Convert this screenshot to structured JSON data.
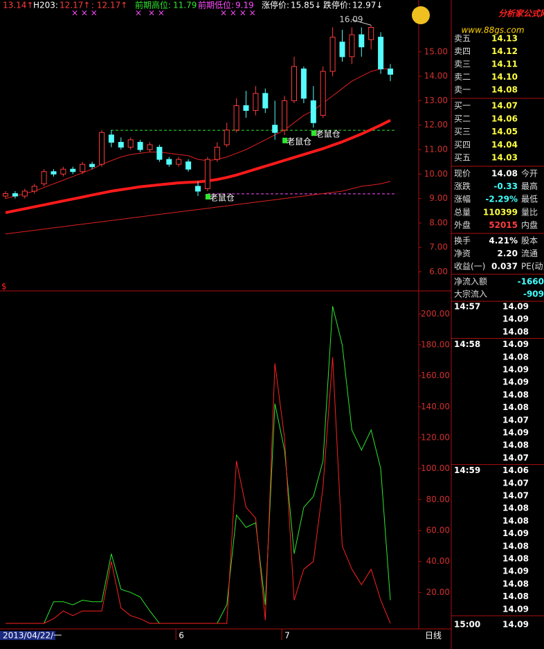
{
  "header": {
    "items": [
      {
        "text": "13.14↑"
      },
      {
        "label": "H203:",
        "text": "12.17↑"
      },
      {
        "text": ": 12.17↑"
      },
      {
        "label": "前期高位:",
        "value": 11.79
      },
      {
        "label": "前期低位:",
        "value": 9.19
      },
      {
        "label": "涨停价:",
        "text": "15.85↓"
      },
      {
        "label": "跌停价:",
        "text": "12.97↓"
      }
    ]
  },
  "chart_data": [
    {
      "type": "candlestick",
      "up_color": "#ff3c3c",
      "down_color": "#54fcfc",
      "open": [
        9.1,
        9.2,
        9.1,
        9.3,
        9.6,
        10.1,
        10.0,
        10.2,
        10.1,
        10.4,
        10.4,
        11.6,
        11.3,
        11.1,
        11.3,
        11.0,
        11.1,
        10.6,
        10.4,
        10.5,
        9.5,
        9.4,
        10.6,
        11.2,
        11.8,
        12.8,
        12.6,
        13.3,
        12.0,
        11.8,
        13.0,
        14.3,
        13.0,
        12.4,
        14.2,
        15.4,
        14.8,
        15.7,
        15.5,
        15.6,
        14.3
      ],
      "high": [
        9.3,
        9.3,
        9.4,
        9.6,
        10.2,
        10.2,
        10.3,
        10.3,
        10.5,
        10.5,
        11.8,
        11.8,
        11.5,
        11.5,
        11.4,
        11.3,
        11.2,
        10.7,
        10.7,
        10.6,
        9.7,
        10.7,
        11.3,
        12.1,
        13.1,
        13.4,
        13.6,
        13.5,
        13.0,
        13.2,
        14.8,
        14.4,
        13.6,
        14.4,
        16.0,
        15.9,
        16.0,
        16.0,
        16.09,
        15.8,
        14.5
      ],
      "low": [
        9.0,
        9.0,
        9.0,
        9.2,
        9.5,
        9.9,
        9.9,
        10.0,
        10.0,
        10.2,
        10.3,
        11.1,
        11.0,
        11.0,
        10.9,
        10.9,
        10.5,
        10.3,
        10.3,
        10.1,
        9.1,
        9.3,
        10.5,
        11.1,
        11.7,
        12.3,
        12.4,
        12.5,
        11.4,
        11.6,
        12.9,
        12.9,
        11.9,
        12.3,
        14.0,
        14.6,
        14.5,
        14.8,
        15.1,
        14.1,
        13.8
      ],
      "close": [
        9.2,
        9.1,
        9.3,
        9.5,
        10.1,
        10.0,
        10.2,
        10.1,
        10.4,
        10.3,
        11.7,
        11.3,
        11.1,
        11.4,
        11.0,
        11.2,
        10.6,
        10.4,
        10.6,
        10.2,
        9.3,
        10.6,
        11.1,
        11.8,
        12.8,
        12.6,
        13.3,
        12.7,
        11.7,
        13.0,
        14.4,
        13.1,
        12.1,
        14.2,
        15.6,
        14.8,
        15.7,
        15.2,
        16.0,
        14.3,
        14.08
      ],
      "series": [
        {
          "color": "#e02020",
          "width": 1,
          "values": [
            9.0,
            9.1,
            9.2,
            9.3,
            9.45,
            9.6,
            9.75,
            9.9,
            10.05,
            10.2,
            10.4,
            10.55,
            10.7,
            10.8,
            10.85,
            10.9,
            10.9,
            10.85,
            10.8,
            10.75,
            10.6,
            10.55,
            10.6,
            10.7,
            10.85,
            11.0,
            11.2,
            11.4,
            11.6,
            11.8,
            12.1,
            12.4,
            12.6,
            12.9,
            13.2,
            13.5,
            13.8,
            14.0,
            14.2,
            14.3,
            14.3
          ]
        },
        {
          "color": "#ff1a1a",
          "width": 4,
          "values": [
            8.42,
            8.5,
            8.58,
            8.66,
            8.74,
            8.82,
            8.9,
            8.98,
            9.06,
            9.14,
            9.22,
            9.3,
            9.36,
            9.42,
            9.48,
            9.52,
            9.56,
            9.6,
            9.64,
            9.66,
            9.68,
            9.72,
            9.78,
            9.86,
            9.96,
            10.08,
            10.2,
            10.32,
            10.44,
            10.56,
            10.68,
            10.8,
            10.92,
            11.04,
            11.18,
            11.32,
            11.48,
            11.64,
            11.82,
            12.0,
            12.2
          ]
        },
        {
          "color": "#e02020",
          "width": 1,
          "values": [
            7.55,
            7.6,
            7.65,
            7.7,
            7.75,
            7.8,
            7.85,
            7.9,
            7.95,
            8.0,
            8.05,
            8.1,
            8.15,
            8.2,
            8.25,
            8.3,
            8.35,
            8.4,
            8.45,
            8.5,
            8.55,
            8.6,
            8.65,
            8.7,
            8.75,
            8.8,
            8.85,
            8.9,
            8.95,
            9.0,
            9.05,
            9.1,
            9.15,
            9.2,
            9.25,
            9.3,
            9.4,
            9.5,
            9.55,
            9.6,
            9.7
          ]
        }
      ],
      "max_label": 16.09,
      "annotations": [
        "老鼠仓",
        "老鼠仓",
        "老鼠仓"
      ],
      "ylim": [
        5.22,
        17.12
      ],
      "yticks": [
        {
          "value": 6,
          "label": "6.00"
        },
        {
          "value": 7,
          "label": "7.00"
        },
        {
          "value": 8,
          "label": "8.00"
        },
        {
          "value": 9,
          "label": "9.00"
        },
        {
          "value": 10,
          "label": "10.00"
        },
        {
          "value": 11,
          "label": "11.00"
        },
        {
          "value": 12,
          "label": "12.00"
        },
        {
          "value": 13,
          "label": "13.00"
        },
        {
          "value": 14,
          "label": "14.00"
        },
        {
          "value": 15,
          "label": "15.00"
        }
      ]
    },
    {
      "type": "line",
      "indicator_label": "$",
      "categories": [
        "2013/04/22/一",
        null,
        null,
        null,
        null,
        null,
        null,
        null,
        null,
        null,
        null,
        null,
        null,
        null,
        null,
        null,
        null,
        null,
        "6",
        null,
        null,
        null,
        null,
        null,
        null,
        null,
        null,
        null,
        null,
        "7",
        null,
        null,
        null,
        null,
        null,
        null,
        null,
        null,
        null,
        null,
        null
      ],
      "series": [
        {
          "color": "#2ee82e",
          "values": [
            0,
            0,
            0,
            0,
            0,
            14,
            14,
            12,
            15,
            14,
            14,
            45,
            22,
            20,
            17,
            8,
            0,
            0,
            0,
            0,
            0,
            0,
            0,
            12,
            70,
            62,
            65,
            12,
            142,
            112,
            45,
            75,
            82,
            105,
            205,
            180,
            125,
            112,
            125,
            100,
            15
          ]
        },
        {
          "color": "#ff2020",
          "values": [
            0,
            0,
            0,
            0,
            0,
            3,
            8,
            5,
            8,
            8,
            8,
            40,
            10,
            5,
            3,
            0,
            0,
            0,
            0,
            0,
            0,
            0,
            0,
            0,
            105,
            75,
            68,
            2,
            168,
            120,
            15,
            35,
            40,
            88,
            172,
            50,
            35,
            25,
            35,
            15,
            0
          ]
        }
      ],
      "ylim": [
        0,
        214
      ],
      "yticks": [
        {
          "value": 20,
          "label": "20.00"
        },
        {
          "value": 40,
          "label": "40.00"
        },
        {
          "value": 60,
          "label": "60.00"
        },
        {
          "value": 80,
          "label": "80.00"
        },
        {
          "value": 100,
          "label": "100.00"
        },
        {
          "value": 120,
          "label": "120.00"
        },
        {
          "value": 140,
          "label": "140.00"
        },
        {
          "value": 160,
          "label": "160.00"
        },
        {
          "value": 180,
          "label": "180.00"
        },
        {
          "value": 200,
          "label": "200.00"
        }
      ],
      "period": "日线"
    }
  ],
  "logo": {
    "title": "分析家公式网",
    "url": "www.88gs.com"
  },
  "order_book": {
    "asks": [
      {
        "label": "卖五",
        "price": "14.13"
      },
      {
        "label": "卖四",
        "price": "14.12"
      },
      {
        "label": "卖三",
        "price": "14.11"
      },
      {
        "label": "卖二",
        "price": "14.10"
      },
      {
        "label": "卖一",
        "price": "14.08"
      }
    ],
    "bids": [
      {
        "label": "买一",
        "price": "14.07"
      },
      {
        "label": "买二",
        "price": "14.06"
      },
      {
        "label": "买三",
        "price": "14.05"
      },
      {
        "label": "买四",
        "price": "14.04"
      },
      {
        "label": "买五",
        "price": "14.03"
      }
    ]
  },
  "quote": [
    {
      "label": "现价",
      "value": "14.08",
      "label2": "今开"
    },
    {
      "label": "涨跌",
      "value": "-0.33",
      "label2": "最高"
    },
    {
      "label": "涨幅",
      "value": "-2.29%",
      "label2": "最低"
    },
    {
      "label": "总量",
      "value": "110399",
      "label2": "量比"
    },
    {
      "label": "外盘",
      "value": "52015",
      "label2": "内盘"
    }
  ],
  "stats": [
    {
      "label": "换手",
      "value": "4.21%",
      "label2": "股本"
    },
    {
      "label": "净资",
      "value": "2.20",
      "label2": "流通"
    },
    {
      "label": "收益(一)",
      "value": "0.037",
      "label2": "PE(动)"
    }
  ],
  "flow": [
    {
      "label": "净流入额",
      "value": "-1660"
    },
    {
      "label": "大宗流入",
      "value": "-909"
    }
  ],
  "ticks": [
    {
      "time": "14:57",
      "prices": [
        "14.09",
        "14.09",
        "14.08"
      ]
    },
    {
      "time": "14:58",
      "prices": [
        "14.09",
        "14.08",
        "14.09",
        "14.09",
        "14.08",
        "14.08",
        "14.07",
        "14.09",
        "14.08",
        "14.07"
      ]
    },
    {
      "time": "14:59",
      "prices": [
        "14.06",
        "14.07",
        "14.07",
        "14.08",
        "14.08",
        "14.09",
        "14.08",
        "14.08",
        "14.09",
        "14.08",
        "14.08",
        "14.09"
      ]
    },
    {
      "time": "15:00",
      "prices": [
        "14.09"
      ]
    }
  ]
}
